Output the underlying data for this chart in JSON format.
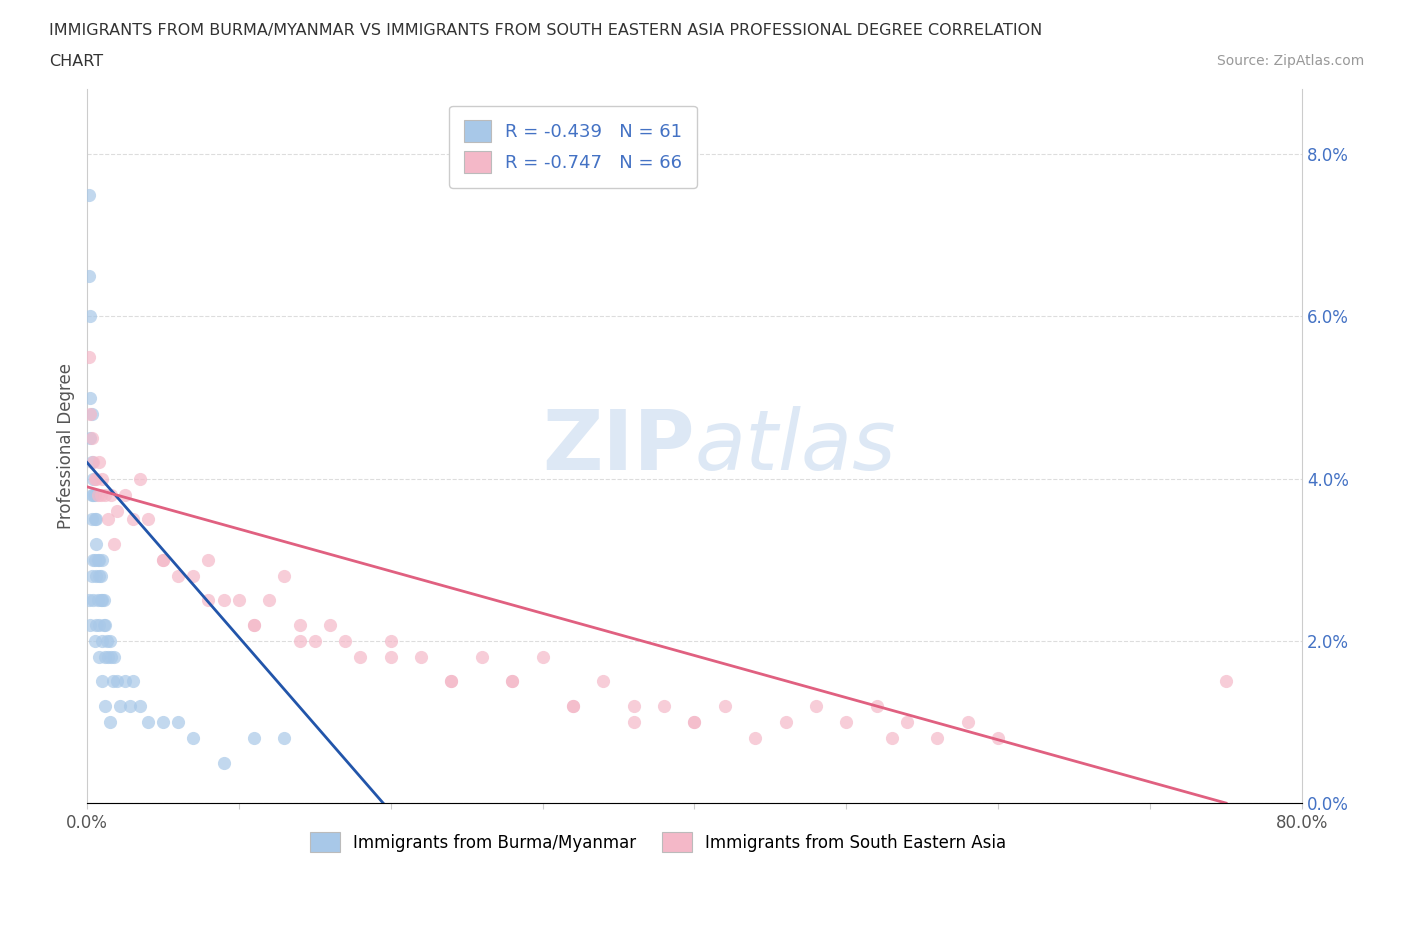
{
  "title_line1": "IMMIGRANTS FROM BURMA/MYANMAR VS IMMIGRANTS FROM SOUTH EASTERN ASIA PROFESSIONAL DEGREE CORRELATION",
  "title_line2": "CHART",
  "source": "Source: ZipAtlas.com",
  "ylabel": "Professional Degree",
  "xlim": [
    0.0,
    0.8
  ],
  "ylim": [
    0.0,
    0.088
  ],
  "xticks": [
    0.0,
    0.1,
    0.2,
    0.3,
    0.4,
    0.5,
    0.6,
    0.7,
    0.8
  ],
  "yticks": [
    0.0,
    0.02,
    0.04,
    0.06,
    0.08
  ],
  "xticklabels": [
    "0.0%",
    "",
    "",
    "",
    "",
    "",
    "",
    "",
    "80.0%"
  ],
  "yticklabels_right": [
    "0.0%",
    "2.0%",
    "4.0%",
    "6.0%",
    "8.0%"
  ],
  "blue_color": "#a8c8e8",
  "pink_color": "#f4b8c8",
  "blue_line_color": "#2255aa",
  "pink_line_color": "#e06080",
  "legend_text_color": "#4472c4",
  "R_blue": -0.439,
  "N_blue": 61,
  "R_pink": -0.747,
  "N_pink": 66,
  "blue_line_x0": 0.0,
  "blue_line_y0": 0.042,
  "blue_line_x1": 0.195,
  "blue_line_y1": 0.0,
  "pink_line_x0": 0.0,
  "pink_line_y0": 0.039,
  "pink_line_x1": 0.75,
  "pink_line_y1": 0.0,
  "blue_scatter_x": [
    0.001,
    0.001,
    0.002,
    0.002,
    0.002,
    0.003,
    0.003,
    0.003,
    0.003,
    0.004,
    0.004,
    0.004,
    0.005,
    0.005,
    0.005,
    0.006,
    0.006,
    0.006,
    0.007,
    0.007,
    0.008,
    0.008,
    0.008,
    0.009,
    0.009,
    0.01,
    0.01,
    0.01,
    0.011,
    0.011,
    0.012,
    0.012,
    0.013,
    0.014,
    0.015,
    0.016,
    0.017,
    0.018,
    0.02,
    0.022,
    0.025,
    0.028,
    0.03,
    0.035,
    0.04,
    0.05,
    0.06,
    0.07,
    0.09,
    0.11,
    0.13,
    0.001,
    0.002,
    0.003,
    0.004,
    0.005,
    0.006,
    0.008,
    0.01,
    0.012,
    0.015
  ],
  "blue_scatter_y": [
    0.075,
    0.065,
    0.06,
    0.05,
    0.045,
    0.048,
    0.042,
    0.038,
    0.035,
    0.04,
    0.038,
    0.03,
    0.038,
    0.035,
    0.03,
    0.035,
    0.032,
    0.028,
    0.03,
    0.025,
    0.03,
    0.028,
    0.022,
    0.028,
    0.025,
    0.03,
    0.025,
    0.02,
    0.025,
    0.022,
    0.022,
    0.018,
    0.02,
    0.018,
    0.02,
    0.018,
    0.015,
    0.018,
    0.015,
    0.012,
    0.015,
    0.012,
    0.015,
    0.012,
    0.01,
    0.01,
    0.01,
    0.008,
    0.005,
    0.008,
    0.008,
    0.025,
    0.022,
    0.028,
    0.025,
    0.02,
    0.022,
    0.018,
    0.015,
    0.012,
    0.01
  ],
  "pink_scatter_x": [
    0.001,
    0.002,
    0.003,
    0.004,
    0.005,
    0.006,
    0.007,
    0.008,
    0.009,
    0.01,
    0.012,
    0.014,
    0.016,
    0.018,
    0.02,
    0.025,
    0.03,
    0.035,
    0.04,
    0.05,
    0.06,
    0.07,
    0.08,
    0.09,
    0.1,
    0.11,
    0.12,
    0.13,
    0.14,
    0.15,
    0.16,
    0.18,
    0.2,
    0.22,
    0.24,
    0.26,
    0.28,
    0.3,
    0.32,
    0.34,
    0.36,
    0.38,
    0.4,
    0.42,
    0.44,
    0.46,
    0.48,
    0.5,
    0.52,
    0.54,
    0.56,
    0.58,
    0.6,
    0.05,
    0.08,
    0.11,
    0.14,
    0.17,
    0.2,
    0.24,
    0.28,
    0.32,
    0.36,
    0.4,
    0.75,
    0.53
  ],
  "pink_scatter_y": [
    0.055,
    0.048,
    0.045,
    0.042,
    0.04,
    0.04,
    0.038,
    0.042,
    0.038,
    0.04,
    0.038,
    0.035,
    0.038,
    0.032,
    0.036,
    0.038,
    0.035,
    0.04,
    0.035,
    0.03,
    0.028,
    0.028,
    0.03,
    0.025,
    0.025,
    0.022,
    0.025,
    0.028,
    0.022,
    0.02,
    0.022,
    0.018,
    0.02,
    0.018,
    0.015,
    0.018,
    0.015,
    0.018,
    0.012,
    0.015,
    0.01,
    0.012,
    0.01,
    0.012,
    0.008,
    0.01,
    0.012,
    0.01,
    0.012,
    0.01,
    0.008,
    0.01,
    0.008,
    0.03,
    0.025,
    0.022,
    0.02,
    0.02,
    0.018,
    0.015,
    0.015,
    0.012,
    0.012,
    0.01,
    0.015,
    0.008
  ]
}
